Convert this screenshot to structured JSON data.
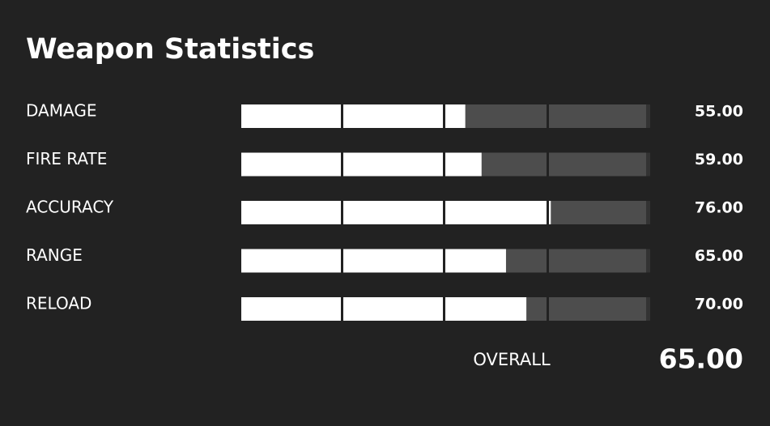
{
  "title": "Weapon Statistics",
  "stats": [
    {
      "label": "DAMAGE",
      "value": 55,
      "value_label": "55.00"
    },
    {
      "label": "FIRE RATE",
      "value": 59,
      "value_label": "59.00"
    },
    {
      "label": "ACCURACY",
      "value": 76,
      "value_label": "76.00"
    },
    {
      "label": "RANGE",
      "value": 65,
      "value_label": "65.00"
    },
    {
      "label": "RELOAD",
      "value": 70,
      "value_label": "70.00"
    }
  ],
  "overall": {
    "label": "OVERALL",
    "value": 65,
    "value_label": "65.00"
  }
}
